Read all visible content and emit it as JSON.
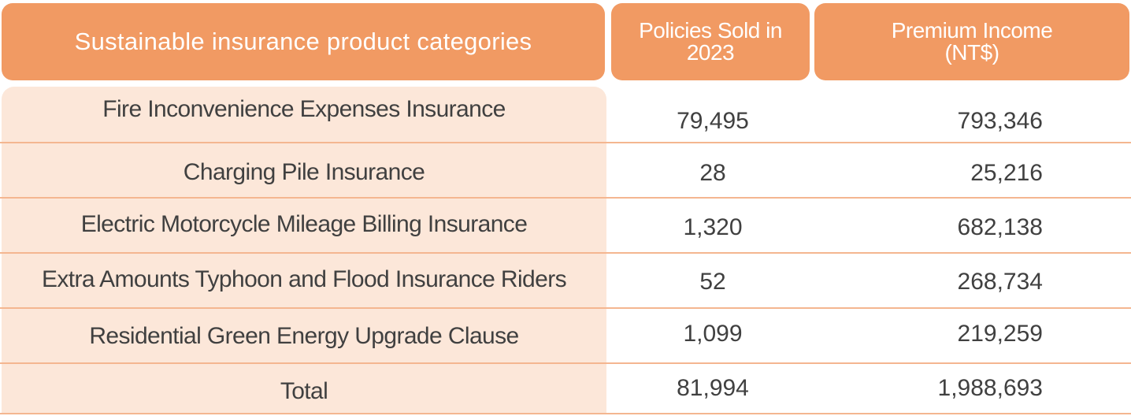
{
  "table": {
    "headers": {
      "category": "Sustainable insurance product categories",
      "policies_line1": "Policies Sold in",
      "policies_line2": "2023",
      "premium_line1": "Premium Income",
      "premium_line2": "(NT$)"
    },
    "rows": [
      {
        "category": "Fire Inconvenience Expenses Insurance",
        "policies": "79,495",
        "premium": "793,346"
      },
      {
        "category": "Charging Pile Insurance",
        "policies": "28",
        "premium": "25,216"
      },
      {
        "category": "Electric Motorcycle Mileage Billing Insurance",
        "policies": "1,320",
        "premium": "682,138"
      },
      {
        "category": "Extra Amounts Typhoon and Flood Insurance Riders",
        "policies": "52",
        "premium": "268,734"
      },
      {
        "category": "Residential Green Energy Upgrade Clause",
        "policies": "1,099",
        "premium": "219,259"
      }
    ],
    "total": {
      "category": "Total",
      "policies": "81,994",
      "premium": "1,988,693"
    }
  },
  "colors": {
    "header_bg": "#f19a63",
    "category_bg": "#fce7d9",
    "rule": "#f4b690",
    "text": "#404040"
  }
}
